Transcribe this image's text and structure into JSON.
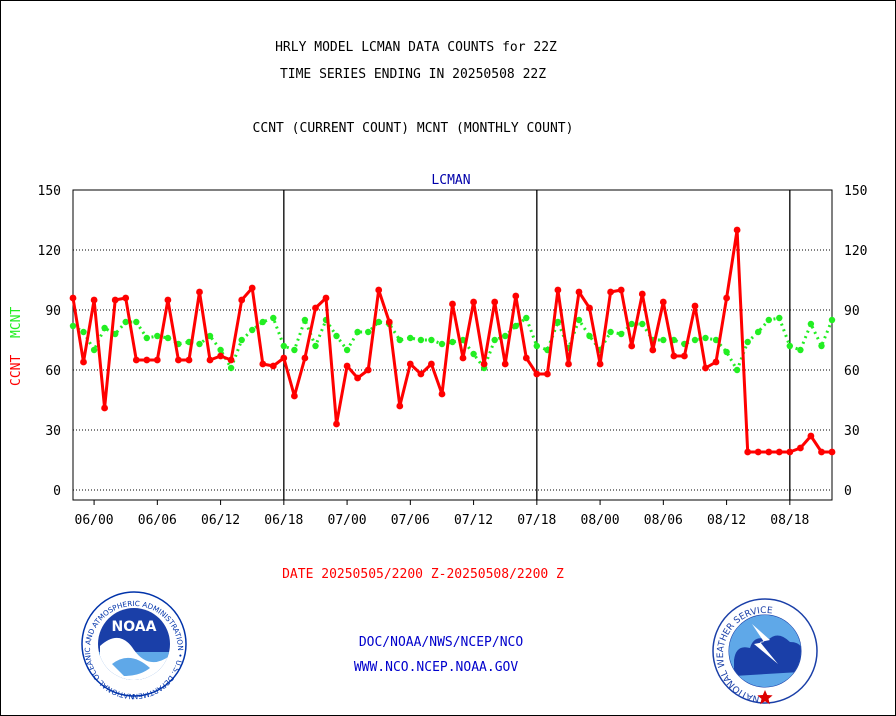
{
  "header": {
    "title_line1": "HRLY MODEL LCMAN DATA COUNTS for 22Z",
    "title_line2": "TIME SERIES ENDING IN 20250508 22Z",
    "subtitle": "CCNT (CURRENT COUNT) MCNT (MONTHLY COUNT)"
  },
  "footer": {
    "date_range": "DATE 20250505/2200 Z-20250508/2200 Z",
    "org": "DOC/NOAA/NWS/NCEP/NCO",
    "url": "WWW.NCO.NCEP.NOAA.GOV"
  },
  "logos": {
    "noaa": {
      "text": "NOAA",
      "ring_text": "NATIONAL OCEANIC AND ATMOSPHERIC ADMINISTRATION • U.S. DEPARTMENT OF COMMERCE •"
    },
    "nws": {
      "ring_text": "NATIONAL WEATHER SERVICE"
    }
  },
  "colors": {
    "ccnt": "#ff0000",
    "mcnt": "#22ee22",
    "title_text": "#000000",
    "station_label": "#0000aa",
    "footer_date": "#ff0000",
    "footer_links": "#0000cc"
  },
  "chart_data": {
    "type": "line",
    "title": "LCMAN",
    "ylabel_ccnt": "CCNT",
    "ylabel_mcnt": "MCNT",
    "ylim": [
      -5,
      150
    ],
    "yticks": [
      0,
      30,
      60,
      90,
      120,
      150
    ],
    "xlim": [
      0,
      72
    ],
    "x_tick_labels": [
      "06/00",
      "06/06",
      "06/12",
      "06/18",
      "07/00",
      "07/06",
      "07/12",
      "07/18",
      "08/00",
      "08/06",
      "08/12",
      "08/18"
    ],
    "x_tick_positions": [
      2,
      8,
      14,
      20,
      26,
      32,
      38,
      44,
      50,
      56,
      62,
      68
    ],
    "day_dividers": [
      20,
      44,
      68
    ],
    "grid": "horizontal-dotted",
    "series": [
      {
        "name": "CCNT",
        "values": [
          96,
          64,
          95,
          41,
          95,
          96,
          65,
          65,
          65,
          95,
          65,
          65,
          99,
          65,
          67,
          65,
          95,
          101,
          63,
          62,
          66,
          47,
          66,
          91,
          96,
          33,
          62,
          56,
          60,
          100,
          84,
          42,
          63,
          58,
          63,
          48,
          93,
          66,
          94,
          63,
          94,
          63,
          97,
          66,
          58,
          58,
          100,
          63,
          99,
          91,
          63,
          99,
          100,
          72,
          98,
          70,
          94,
          67,
          67,
          92,
          61,
          64,
          96,
          130,
          19,
          19,
          19,
          19,
          19,
          21,
          27,
          19,
          19
        ]
      },
      {
        "name": "MCNT",
        "values": [
          82,
          79,
          70,
          81,
          78,
          84,
          84,
          76,
          77,
          76,
          73,
          74,
          73,
          77,
          70,
          61,
          75,
          80,
          84,
          86,
          72,
          70,
          85,
          72,
          85,
          77,
          70,
          79,
          79,
          84,
          83,
          75,
          76,
          75,
          75,
          73,
          74,
          75,
          68,
          61,
          75,
          77,
          82,
          86,
          72,
          70,
          84,
          71,
          85,
          77,
          70,
          79,
          78,
          83,
          83,
          75,
          75,
          75,
          73,
          75,
          76,
          75,
          69,
          60,
          74,
          79,
          85,
          86,
          72,
          70,
          83,
          72,
          85
        ]
      }
    ]
  }
}
